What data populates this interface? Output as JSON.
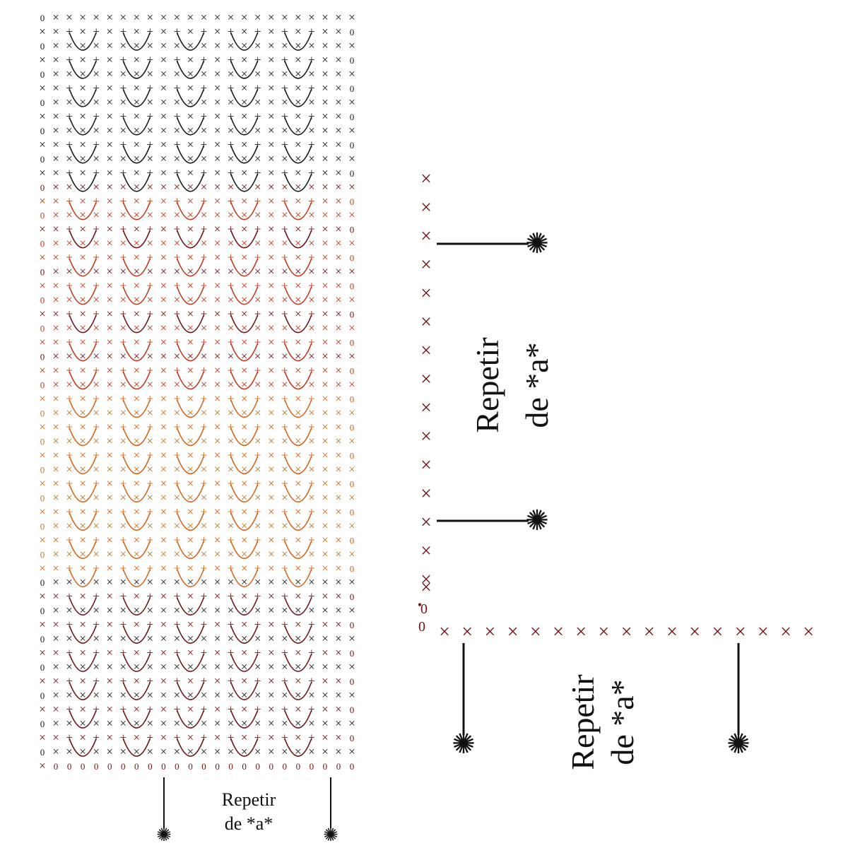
{
  "chart": {
    "symbols": {
      "sc": "×",
      "ch": "0",
      "dc": "+",
      "sl": "•"
    },
    "palette": {
      "black": "#1a1a1a",
      "dark_red": "#6e1418",
      "red": "#c23a1e",
      "orange": "#d8641c",
      "tan": "#b97a2a"
    }
  },
  "labels": {
    "chart_repeat": {
      "line1": "Repetir",
      "line2": "de *a*"
    },
    "side_repeat": {
      "line1": "Repetir",
      "line2": "de *a*"
    },
    "bottom_repeat": {
      "line1": "Repetir",
      "line2": "de *a*"
    },
    "marker_symbol": "✺"
  }
}
